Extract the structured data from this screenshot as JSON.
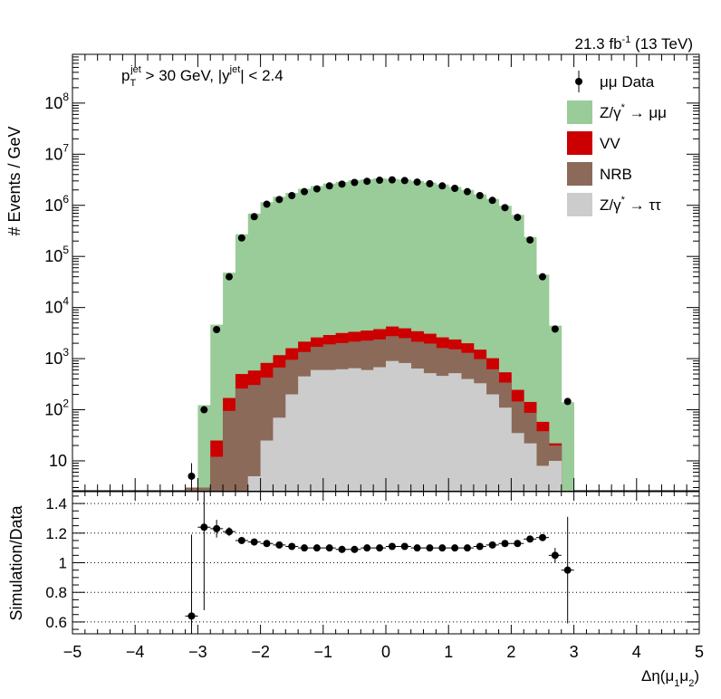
{
  "header": {
    "lumi_value": "21.3 fb",
    "lumi_exp": "-1",
    "lumi_energy": " (13 TeV)",
    "cut_p": "p",
    "cut_sub": "T",
    "cut_sup": "jet",
    "cut_mid": " > 30 GeV,  |y",
    "cut_sup2": "jet",
    "cut_end": "| < 2.4"
  },
  "legend": [
    {
      "kind": "marker",
      "label": "μμ Data",
      "color": "#000000"
    },
    {
      "kind": "box",
      "label": "Z/γ",
      "sup": "*",
      "tail": " → μμ",
      "color": "#99cc99"
    },
    {
      "kind": "box",
      "label": "VV",
      "sup": "",
      "tail": "",
      "color": "#cc0000"
    },
    {
      "kind": "box",
      "label": "NRB",
      "sup": "",
      "tail": "",
      "color": "#8b6a5a"
    },
    {
      "kind": "box",
      "label": "Z/γ",
      "sup": "*",
      "tail": " → ττ",
      "color": "#cccccc"
    }
  ],
  "axes": {
    "ylabel_top": "# Events / GeV",
    "ylabel_bottom": "Simulation/Data",
    "xlabel_main": "Δη(μ",
    "xlabel_sub1": "1",
    "xlabel_mid": "μ",
    "xlabel_sub2": "2",
    "xlabel_close": ")",
    "y_ticks_top": [
      {
        "base": "10",
        "exp": "8",
        "value": 100000000
      },
      {
        "base": "10",
        "exp": "7",
        "value": 10000000
      },
      {
        "base": "10",
        "exp": "6",
        "value": 1000000
      },
      {
        "base": "10",
        "exp": "5",
        "value": 100000
      },
      {
        "base": "10",
        "exp": "4",
        "value": 10000
      },
      {
        "base": "10",
        "exp": "3",
        "value": 1000
      },
      {
        "base": "10",
        "exp": "2",
        "value": 100
      },
      {
        "base": "10",
        "exp": "",
        "value": 10
      }
    ],
    "y_ticks_bottom": [
      "1.4",
      "1.2",
      "1",
      "0.8",
      "0.6"
    ],
    "x_ticks": [
      "−5",
      "−4",
      "−3",
      "−2",
      "−1",
      "0",
      "1",
      "2",
      "3",
      "4",
      "5"
    ]
  },
  "chart_data": [
    {
      "type": "bar",
      "stacked": true,
      "y_scale": "log",
      "xlim": [
        -5,
        5
      ],
      "ylim": [
        2.6,
        900000000
      ],
      "grid": false,
      "legend_position": "top-right",
      "bin_width": 0.2,
      "bin_low_edges": [
        -3.2,
        -3.0,
        -2.8,
        -2.6,
        -2.4,
        -2.2,
        -2.0,
        -1.8,
        -1.6,
        -1.4,
        -1.2,
        -1.0,
        -0.8,
        -0.6,
        -0.4,
        -0.2,
        0.0,
        0.2,
        0.4,
        0.6,
        0.8,
        1.0,
        1.2,
        1.4,
        1.6,
        1.8,
        2.0,
        2.2,
        2.4,
        2.6,
        2.8
      ],
      "series": [
        {
          "name": "Z/γ* → ττ",
          "color": "#cccccc",
          "values": [
            0,
            0,
            0,
            0,
            0,
            5,
            25,
            70,
            200,
            450,
            600,
            600,
            620,
            650,
            600,
            680,
            900,
            820,
            640,
            520,
            460,
            520,
            400,
            330,
            200,
            110,
            35,
            22,
            8,
            10,
            0
          ]
        },
        {
          "name": "NRB",
          "color": "#8b6a5a",
          "values": [
            3,
            3,
            12,
            95,
            260,
            300,
            400,
            600,
            750,
            900,
            1100,
            1300,
            1400,
            1500,
            1650,
            1700,
            1850,
            1700,
            1500,
            1450,
            1150,
            1000,
            900,
            650,
            420,
            230,
            110,
            65,
            30,
            10,
            0
          ]
        },
        {
          "name": "VV",
          "color": "#cc0000",
          "values": [
            0,
            0,
            13,
            75,
            240,
            280,
            400,
            500,
            650,
            800,
            900,
            1000,
            1150,
            1200,
            1300,
            1400,
            1500,
            1400,
            1300,
            1100,
            1000,
            850,
            700,
            520,
            400,
            200,
            100,
            55,
            20,
            2,
            0
          ]
        },
        {
          "name": "Z/γ* → μμ",
          "color": "#99cc99",
          "values": [
            0,
            120,
            4600,
            48000,
            270000,
            690000,
            1150000,
            1470000,
            1740000,
            2100000,
            2380000,
            2660000,
            2870000,
            3090000,
            3230000,
            3370000,
            3270000,
            3180000,
            3000000,
            2770000,
            2550000,
            2280000,
            1990000,
            1630000,
            1330000,
            980000,
            650000,
            240000,
            44000,
            4400,
            140
          ]
        }
      ],
      "data_points": {
        "name": "μμ Data",
        "x": [
          -3.1,
          -2.9,
          -2.7,
          -2.5,
          -2.3,
          -2.1,
          -1.9,
          -1.7,
          -1.5,
          -1.3,
          -1.1,
          -0.9,
          -0.7,
          -0.5,
          -0.3,
          -0.1,
          0.1,
          0.3,
          0.5,
          0.7,
          0.9,
          1.1,
          1.3,
          1.5,
          1.7,
          1.9,
          2.1,
          2.3,
          2.5,
          2.7,
          2.9
        ],
        "y": [
          5,
          100,
          3700,
          40000,
          230000,
          600000,
          1050000,
          1300000,
          1550000,
          1850000,
          2100000,
          2400000,
          2600000,
          2800000,
          2950000,
          3100000,
          3150000,
          3050000,
          2850000,
          2650000,
          2400000,
          2150000,
          1850000,
          1550000,
          1250000,
          900000,
          580000,
          210000,
          40000,
          3800,
          145
        ],
        "yerr_low": [
          4,
          13,
          60,
          200,
          500,
          780,
          1000,
          1100,
          1250,
          1350,
          1450,
          1550,
          1600,
          1650,
          1720,
          1760,
          1770,
          1750,
          1700,
          1630,
          1550,
          1470,
          1360,
          1250,
          1120,
          950,
          760,
          460,
          200,
          62,
          12
        ],
        "yerr_high": [
          4,
          13,
          60,
          200,
          500,
          780,
          1000,
          1100,
          1250,
          1350,
          1450,
          1550,
          1600,
          1650,
          1720,
          1760,
          1770,
          1750,
          1700,
          1630,
          1550,
          1470,
          1360,
          1250,
          1120,
          950,
          760,
          460,
          200,
          62,
          12
        ]
      }
    },
    {
      "type": "scatter",
      "ylabel": "Simulation/Data",
      "xlim": [
        -5,
        5
      ],
      "ylim": [
        0.52,
        1.48
      ],
      "grid": true,
      "x": [
        -3.1,
        -2.9,
        -2.7,
        -2.5,
        -2.3,
        -2.1,
        -1.9,
        -1.7,
        -1.5,
        -1.3,
        -1.1,
        -0.9,
        -0.7,
        -0.5,
        -0.3,
        -0.1,
        0.1,
        0.3,
        0.5,
        0.7,
        0.9,
        1.1,
        1.3,
        1.5,
        1.7,
        1.9,
        2.1,
        2.3,
        2.5,
        2.7,
        2.9
      ],
      "y": [
        0.64,
        1.24,
        1.23,
        1.21,
        1.15,
        1.14,
        1.13,
        1.12,
        1.11,
        1.1,
        1.1,
        1.1,
        1.09,
        1.09,
        1.1,
        1.1,
        1.11,
        1.11,
        1.1,
        1.1,
        1.1,
        1.1,
        1.1,
        1.11,
        1.12,
        1.13,
        1.13,
        1.16,
        1.17,
        1.05,
        0.95
      ],
      "yerr": [
        0.55,
        0.56,
        0.06,
        0.03,
        0.02,
        0.01,
        0.01,
        0.01,
        0.01,
        0.01,
        0.01,
        0.01,
        0.01,
        0.01,
        0.01,
        0.01,
        0.01,
        0.01,
        0.01,
        0.01,
        0.01,
        0.01,
        0.01,
        0.01,
        0.01,
        0.01,
        0.01,
        0.01,
        0.02,
        0.05,
        0.36
      ]
    }
  ]
}
